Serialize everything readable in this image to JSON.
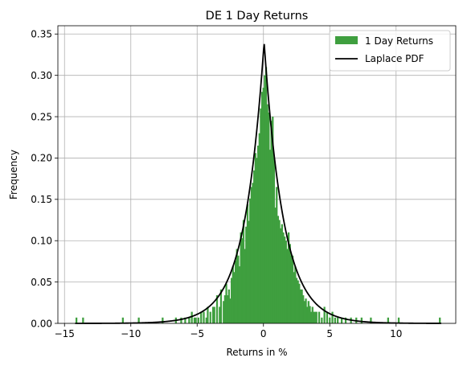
{
  "chart_data": {
    "type": "bar",
    "title": "DE 1 Day Returns",
    "xlabel": "Returns in %",
    "ylabel": "Frequency",
    "xlim": [
      -15.5,
      14.5
    ],
    "ylim": [
      0,
      0.36
    ],
    "xticks": [
      -15,
      -10,
      -5,
      0,
      5,
      10
    ],
    "yticks": [
      0.0,
      0.05,
      0.1,
      0.15,
      0.2,
      0.25,
      0.3,
      0.35
    ],
    "ytick_labels": [
      "0.00",
      "0.05",
      "0.10",
      "0.15",
      "0.20",
      "0.25",
      "0.30",
      "0.35"
    ],
    "grid": true,
    "legend_position": "top-right",
    "colors": {
      "histogram": "#3f9f3f",
      "pdf": "#000000",
      "grid": "#b0b0b0"
    },
    "series": [
      {
        "name": "1 Day Returns",
        "kind": "histogram",
        "bin_width": 0.137,
        "x": [
          -14.1,
          -13.6,
          -10.6,
          -9.4,
          -7.6,
          -6.6,
          -6.2,
          -5.9,
          -5.6,
          -5.4,
          -5.2,
          -5.1,
          -4.9,
          -4.7,
          -4.5,
          -4.3,
          -4.2,
          -4.0,
          -3.8,
          -3.7,
          -3.5,
          -3.3,
          -3.2,
          -3.0,
          -2.9,
          -2.8,
          -2.7,
          -2.6,
          -2.5,
          -2.4,
          -2.3,
          -2.2,
          -2.1,
          -2.0,
          -1.9,
          -1.8,
          -1.7,
          -1.6,
          -1.5,
          -1.4,
          -1.3,
          -1.2,
          -1.1,
          -1.0,
          -0.9,
          -0.8,
          -0.7,
          -0.6,
          -0.5,
          -0.4,
          -0.3,
          -0.2,
          -0.1,
          0.0,
          0.1,
          0.2,
          0.3,
          0.4,
          0.5,
          0.6,
          0.7,
          0.8,
          0.9,
          1.0,
          1.1,
          1.2,
          1.3,
          1.4,
          1.5,
          1.6,
          1.7,
          1.8,
          1.9,
          2.0,
          2.1,
          2.2,
          2.3,
          2.4,
          2.5,
          2.6,
          2.7,
          2.8,
          2.9,
          3.0,
          3.1,
          3.2,
          3.3,
          3.4,
          3.5,
          3.6,
          3.7,
          3.8,
          3.9,
          4.0,
          4.2,
          4.4,
          4.6,
          4.8,
          5.0,
          5.2,
          5.4,
          5.6,
          5.9,
          6.2,
          6.6,
          7.0,
          7.4,
          8.1,
          9.4,
          10.2,
          13.3
        ],
        "values": [
          0.007,
          0.007,
          0.007,
          0.007,
          0.007,
          0.007,
          0.007,
          0.007,
          0.007,
          0.014,
          0.007,
          0.007,
          0.007,
          0.014,
          0.014,
          0.007,
          0.02,
          0.014,
          0.02,
          0.02,
          0.034,
          0.02,
          0.041,
          0.027,
          0.034,
          0.048,
          0.034,
          0.041,
          0.03,
          0.055,
          0.069,
          0.062,
          0.076,
          0.09,
          0.082,
          0.069,
          0.11,
          0.103,
          0.125,
          0.09,
          0.117,
          0.144,
          0.124,
          0.151,
          0.165,
          0.17,
          0.185,
          0.206,
          0.2,
          0.215,
          0.23,
          0.26,
          0.28,
          0.285,
          0.3,
          0.31,
          0.265,
          0.255,
          0.21,
          0.245,
          0.25,
          0.2,
          0.14,
          0.165,
          0.13,
          0.125,
          0.115,
          0.12,
          0.11,
          0.105,
          0.1,
          0.09,
          0.11,
          0.096,
          0.082,
          0.082,
          0.062,
          0.069,
          0.055,
          0.052,
          0.048,
          0.041,
          0.041,
          0.034,
          0.027,
          0.03,
          0.02,
          0.027,
          0.021,
          0.014,
          0.02,
          0.014,
          0.014,
          0.014,
          0.014,
          0.007,
          0.02,
          0.014,
          0.007,
          0.014,
          0.007,
          0.007,
          0.007,
          0.007,
          0.007,
          0.007,
          0.007,
          0.007,
          0.007,
          0.007,
          0.007
        ]
      },
      {
        "name": "Laplace PDF",
        "kind": "line",
        "location": 0.05,
        "scale": 1.47,
        "x_range": [
          -14.2,
          13.4
        ]
      }
    ]
  }
}
